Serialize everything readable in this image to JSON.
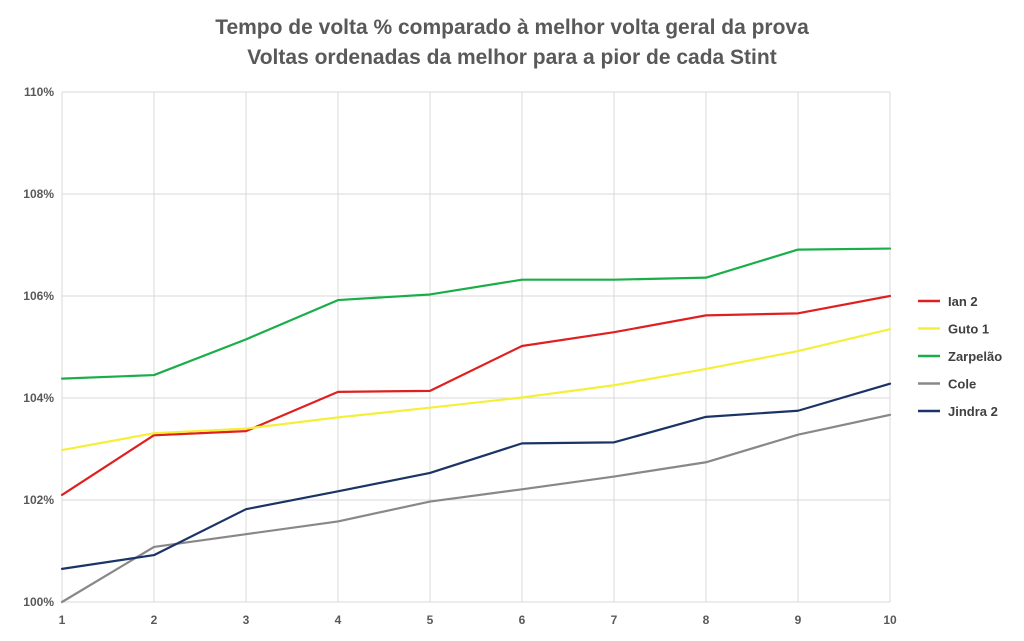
{
  "chart_data": {
    "type": "line",
    "title": "Tempo de volta % comparado à melhor volta geral da prova",
    "subtitle": "Voltas ordenadas da melhor para a pior de cada Stint",
    "x": [
      1,
      2,
      3,
      4,
      5,
      6,
      7,
      8,
      9,
      10
    ],
    "x_tick_labels": [
      "1",
      "2",
      "3",
      "4",
      "5",
      "6",
      "7",
      "8",
      "9",
      "10"
    ],
    "ylim": [
      100,
      110
    ],
    "y_ticks": [
      100,
      102,
      104,
      106,
      108,
      110
    ],
    "y_tick_labels": [
      "100%",
      "102%",
      "104%",
      "106%",
      "108%",
      "110%"
    ],
    "grid": true,
    "legend_position": "right",
    "series": [
      {
        "name": "Ian 2",
        "color": "#e02020",
        "values": [
          102.1,
          103.27,
          103.35,
          104.12,
          104.14,
          105.02,
          105.29,
          105.62,
          105.66,
          106.0
        ]
      },
      {
        "name": "Guto 1",
        "color": "#f5ef3a",
        "values": [
          102.98,
          103.31,
          103.4,
          103.62,
          103.81,
          104.01,
          104.25,
          104.57,
          104.92,
          105.35
        ]
      },
      {
        "name": "Zarpelão",
        "color": "#1aae4a",
        "values": [
          104.38,
          104.45,
          105.15,
          105.92,
          106.03,
          106.32,
          106.32,
          106.36,
          106.91,
          106.93
        ]
      },
      {
        "name": "Cole",
        "color": "#888888",
        "values": [
          100.0,
          101.08,
          101.33,
          101.58,
          101.97,
          102.21,
          102.46,
          102.74,
          103.28,
          103.67
        ]
      },
      {
        "name": "Jindra 2",
        "color": "#1b3466",
        "values": [
          100.65,
          100.92,
          101.82,
          102.17,
          102.53,
          103.11,
          103.13,
          103.63,
          103.75,
          104.28
        ]
      }
    ]
  }
}
